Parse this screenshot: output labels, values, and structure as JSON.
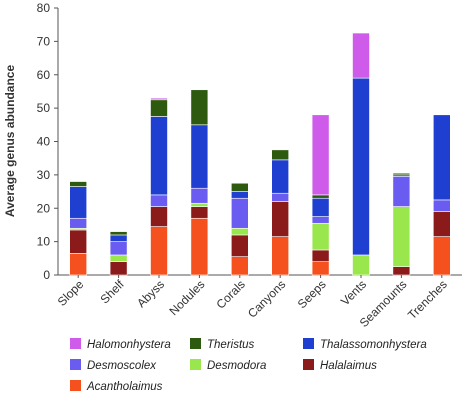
{
  "chart_data": {
    "type": "bar",
    "stacked": true,
    "title": "",
    "xlabel": "",
    "ylabel": "Average genus abundance",
    "ylim": [
      0,
      80
    ],
    "yticks": [
      0,
      10,
      20,
      30,
      40,
      50,
      60,
      70,
      80
    ],
    "grid": false,
    "legend_position": "bottom",
    "categories": [
      "Slope",
      "Shelf",
      "Abyss",
      "Nodules",
      "Corals",
      "Canyons",
      "Seeps",
      "Vents",
      "Seamounts",
      "Trenches"
    ],
    "series": [
      {
        "name": "Acantholaimus",
        "color": "#f4511e",
        "values": [
          6.5,
          0,
          14.5,
          17,
          5.5,
          11.5,
          4,
          0,
          0,
          11.5
        ]
      },
      {
        "name": "Halalaimus",
        "color": "#8b1a1a",
        "values": [
          7,
          4,
          6,
          3.5,
          6.5,
          10.5,
          3.5,
          0,
          2.5,
          7.5
        ]
      },
      {
        "name": "Desmodora",
        "color": "#99e64d",
        "values": [
          0.5,
          2,
          0,
          1,
          2,
          0,
          8,
          6,
          18,
          0
        ]
      },
      {
        "name": "Desmoscolex",
        "color": "#6a5cf0",
        "values": [
          3,
          4,
          3.5,
          4.5,
          9,
          2.5,
          2,
          0,
          9,
          3.5
        ]
      },
      {
        "name": "Thalassomonhystera",
        "color": "#1f3fd0",
        "values": [
          9.5,
          2,
          23.5,
          19,
          2,
          10,
          5.5,
          53,
          0.5,
          25.5
        ]
      },
      {
        "name": "Theristus",
        "color": "#2d5a0e",
        "values": [
          1.5,
          1,
          5,
          10.5,
          2.5,
          3,
          1,
          0,
          0.5,
          0
        ]
      },
      {
        "name": "Halomonhystera",
        "color": "#cf5bea",
        "values": [
          0,
          0,
          0.5,
          0,
          0,
          0,
          24,
          13.5,
          0,
          0
        ]
      }
    ],
    "legend_order": [
      "Halomonhystera",
      "Theristus",
      "Thalassomonhystera",
      "Desmoscolex",
      "Desmodora",
      "Halalaimus",
      "Acantholaimus"
    ]
  }
}
